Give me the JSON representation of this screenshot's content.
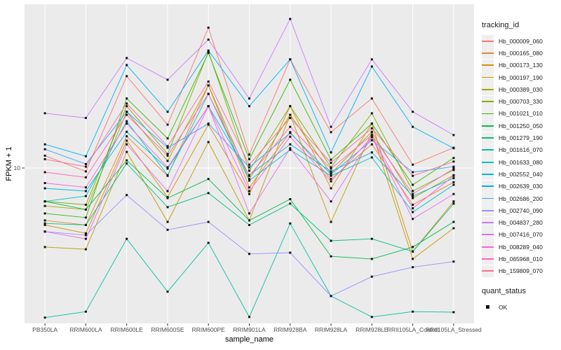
{
  "chart_data": {
    "type": "line",
    "title": "",
    "xlabel": "sample_name",
    "ylabel": "FPKM + 1",
    "y_scale": "log10",
    "y_ticks": [
      {
        "label": "10",
        "value": 10
      }
    ],
    "y_range_log10": [
      0,
      2.05
    ],
    "grid": true,
    "legend_position": "right",
    "panel_bg": "#EBEBEB",
    "grid_color": "#FFFFFF",
    "axis_text_color": "#4D4D4D",
    "point_marker": "small-black-square",
    "point_color": "#111111",
    "legend_title": "tracking_id",
    "categories": [
      "PB350LA",
      "RRIM600LA",
      "RRIM600LE",
      "RRIM600SE",
      "RRIM600PE",
      "RRIM901LA",
      "RRIM928BA",
      "RRIM928LA",
      "RRIM928LE",
      "RRII105LA_Control",
      "RRII105LA_Stressed"
    ],
    "series": [
      {
        "name": "Hb_000009_060",
        "color": "#F8766D",
        "values": [
          12,
          9.5,
          39,
          19,
          80,
          12.2,
          50,
          17,
          28,
          10.5,
          13.5
        ]
      },
      {
        "name": "Hb_000165_080",
        "color": "#EA8331",
        "values": [
          4.6,
          4.3,
          16,
          8.9,
          34,
          7.5,
          17,
          8.5,
          14.2,
          5.8,
          8.1
        ]
      },
      {
        "name": "Hb_000173_130",
        "color": "#D89000",
        "values": [
          4.3,
          3.8,
          15,
          6.5,
          19,
          6.8,
          25,
          7.4,
          19.3,
          2.9,
          6.1
        ]
      },
      {
        "name": "Hb_000197_190",
        "color": "#C09B00",
        "values": [
          3.1,
          3.0,
          12.7,
          4.5,
          14.7,
          4.6,
          22,
          4.5,
          17,
          2.6,
          4.1
        ]
      },
      {
        "name": "Hb_000389_030",
        "color": "#A3A500",
        "values": [
          5.7,
          5.4,
          23,
          11.1,
          34,
          8.5,
          22,
          9.2,
          17.1,
          6.4,
          9.0
        ]
      },
      {
        "name": "Hb_000703_330",
        "color": "#7CAE00",
        "values": [
          6.1,
          5.8,
          25,
          12.3,
          56,
          9.6,
          25,
          10.1,
          22.5,
          7.1,
          9.7
        ]
      },
      {
        "name": "Hb_001021_010",
        "color": "#39B600",
        "values": [
          5.1,
          4.8,
          28,
          15.5,
          55,
          11.4,
          37,
          11.3,
          19.3,
          7.8,
          11.6
        ]
      },
      {
        "name": "Hb_001250_050",
        "color": "#00BB4E",
        "values": [
          6.1,
          5.4,
          11.2,
          6.4,
          8.5,
          4.6,
          6.3,
          2.7,
          2.6,
          3.1,
          4.5
        ]
      },
      {
        "name": "Hb_001279_190",
        "color": "#00BF7D",
        "values": [
          4.4,
          4.3,
          10.7,
          5.6,
          6.9,
          4.3,
          5.9,
          3.4,
          3.5,
          2.9,
          5.9
        ]
      },
      {
        "name": "Hb_001616_070",
        "color": "#00C1A3",
        "values": [
          1.09,
          1.19,
          3.5,
          1.6,
          3.3,
          1.1,
          4.4,
          1.5,
          1.1,
          1.19,
          1.18
        ]
      },
      {
        "name": "Hb_001633_080",
        "color": "#00BFC4",
        "values": [
          6.1,
          6.6,
          20,
          9.0,
          30,
          8.3,
          13.1,
          8.9,
          11.7,
          5.2,
          7.8
        ]
      },
      {
        "name": "Hb_002552_040",
        "color": "#00BADE",
        "values": [
          7.4,
          7.1,
          17.1,
          9.9,
          25,
          9.0,
          14.2,
          9.5,
          12.6,
          6.6,
          8.6
        ]
      },
      {
        "name": "Hb_002639_030",
        "color": "#00B0F6",
        "values": [
          14.2,
          11.9,
          46,
          23,
          57,
          25,
          50,
          12.6,
          45,
          18.4,
          13.4
        ]
      },
      {
        "name": "Hb_002686_200",
        "color": "#35A2FF",
        "values": [
          13.2,
          10.6,
          23,
          13.5,
          19.3,
          10.1,
          16.8,
          9.1,
          15.1,
          9.4,
          10.2
        ]
      },
      {
        "name": "Hb_002740_090",
        "color": "#9590FF",
        "values": [
          3.9,
          3.7,
          6.7,
          4.0,
          4.5,
          2.8,
          2.85,
          1.5,
          2.0,
          2.3,
          2.5
        ]
      },
      {
        "name": "Hb_004837_280",
        "color": "#C77CFF",
        "values": [
          22.5,
          21,
          51,
          37,
          67,
          28,
          91,
          18.4,
          50,
          23,
          16.3
        ]
      },
      {
        "name": "Hb_007416_070",
        "color": "#E76BF3",
        "values": [
          3.9,
          3.5,
          14.2,
          7.1,
          25,
          5.1,
          13.4,
          6.1,
          15.8,
          4.7,
          6.8
        ]
      },
      {
        "name": "Hb_008289_040",
        "color": "#FA62DB",
        "values": [
          8.0,
          7.5,
          19.3,
          10.1,
          25,
          7.1,
          15.9,
          8.2,
          15.8,
          5.5,
          8.9
        ]
      },
      {
        "name": "Hb_065968_010",
        "color": "#FF62BC",
        "values": [
          9.4,
          8.7,
          22,
          12.0,
          30,
          8.9,
          18.4,
          9.9,
          16.3,
          6.8,
          9.9
        ]
      },
      {
        "name": "Hb_159809_070",
        "color": "#FF6A98",
        "values": [
          11.4,
          10.2,
          26,
          13.8,
          36,
          10.5,
          21,
          10.8,
          18.0,
          8.9,
          11.0
        ]
      }
    ],
    "quant_status": {
      "title": "quant_status",
      "entries": [
        {
          "label": "OK",
          "marker": "black-square"
        }
      ]
    }
  }
}
